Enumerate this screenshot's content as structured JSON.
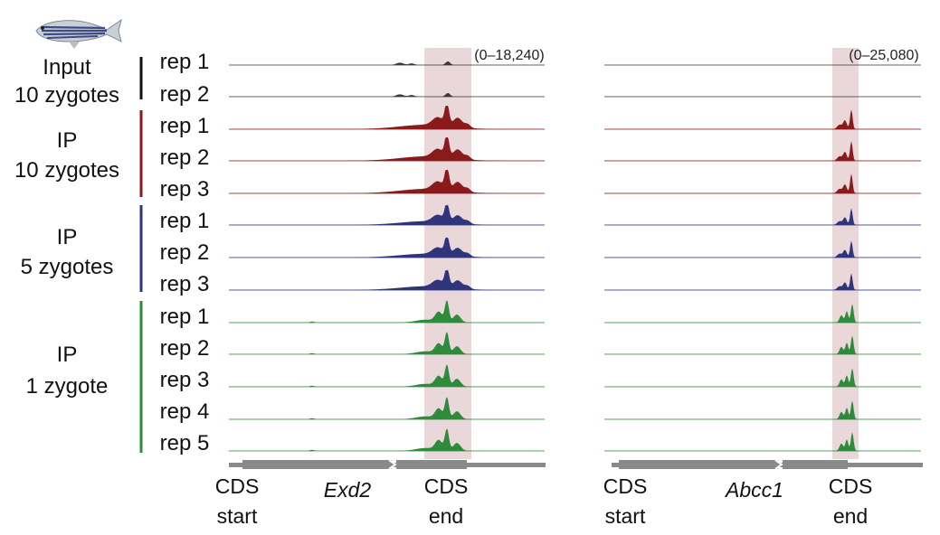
{
  "organism_icon": "zebrafish-icon",
  "colors": {
    "input": "#3a3a3a",
    "ip10": "#8b1a1a",
    "ip5": "#2f357a",
    "ip1": "#2e8b3c",
    "highlight": "#ead7d9",
    "gene": "#8a8a8a"
  },
  "groups": [
    {
      "id": "input",
      "line1": "Input",
      "line2": "10 zygotes",
      "reps": [
        "rep 1",
        "rep 2"
      ]
    },
    {
      "id": "ip10",
      "line1": "IP",
      "line2": "10 zygotes",
      "reps": [
        "rep 1",
        "rep 2",
        "rep 3"
      ]
    },
    {
      "id": "ip5",
      "line1": "IP",
      "line2": "5 zygotes",
      "reps": [
        "rep 1",
        "rep 2",
        "rep 3"
      ]
    },
    {
      "id": "ip1",
      "line1": "IP",
      "line2": "1 zygote",
      "reps": [
        "rep 1",
        "rep 2",
        "rep 3",
        "rep 4",
        "rep 5"
      ]
    }
  ],
  "panels": [
    {
      "gene": "Exd2",
      "range": "(0–18,240)",
      "cds_start": {
        "line1": "CDS",
        "line2": "start"
      },
      "cds_end": {
        "line1": "CDS",
        "line2": "end"
      }
    },
    {
      "gene": "Abcc1",
      "range": "(0–25,080)",
      "cds_start": {
        "line1": "CDS",
        "line2": "start"
      },
      "cds_end": {
        "line1": "CDS",
        "line2": "end"
      }
    }
  ]
}
